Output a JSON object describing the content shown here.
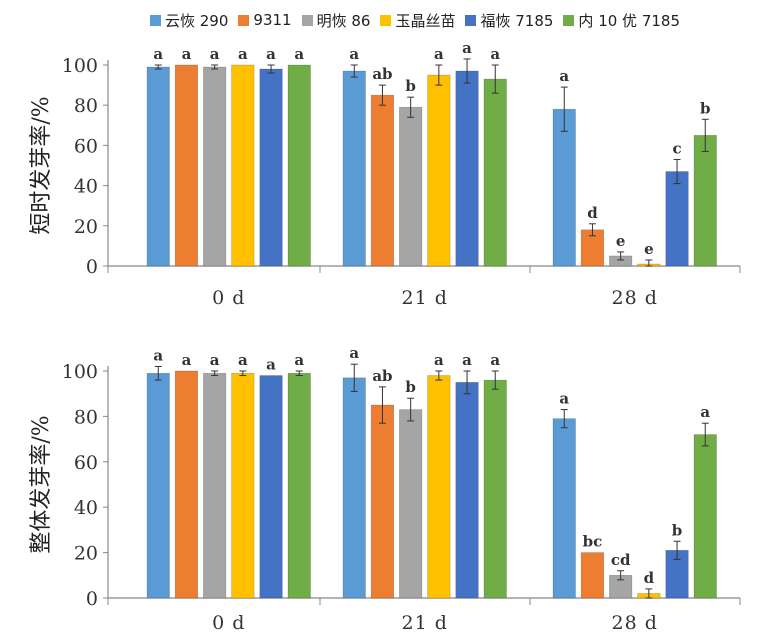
{
  "legend": [
    {
      "name": "云恢 290",
      "color": "#5b9bd5"
    },
    {
      "name": "9311",
      "color": "#ed7d31"
    },
    {
      "name": "明恢 86",
      "color": "#a5a5a5"
    },
    {
      "name": "玉晶丝苗",
      "color": "#ffc000"
    },
    {
      "name": "福恢 7185",
      "color": "#4472c4"
    },
    {
      "name": "内 10 优 7185",
      "color": "#70ad47"
    }
  ],
  "chart_data": [
    {
      "type": "bar",
      "categories": [
        "0 d",
        "21 d",
        "28 d"
      ],
      "ylabel": "短时发芽率/%",
      "ylim": [
        0,
        100
      ],
      "yticks": [
        0,
        20,
        40,
        60,
        80,
        100
      ],
      "series": [
        {
          "name": "云恢 290",
          "values": [
            99,
            97,
            78
          ],
          "errors": [
            1,
            3,
            11
          ],
          "labels": [
            "a",
            "a",
            "a"
          ]
        },
        {
          "name": "9311",
          "values": [
            100,
            85,
            18
          ],
          "errors": [
            0,
            5,
            3
          ],
          "labels": [
            "a",
            "ab",
            "d"
          ]
        },
        {
          "name": "明恢 86",
          "values": [
            99,
            79,
            5
          ],
          "errors": [
            1,
            5,
            2
          ],
          "labels": [
            "a",
            "b",
            "e"
          ]
        },
        {
          "name": "玉晶丝苗",
          "values": [
            100,
            95,
            1
          ],
          "errors": [
            0,
            5,
            2
          ],
          "labels": [
            "a",
            "a",
            "e"
          ]
        },
        {
          "name": "福恢 7185",
          "values": [
            98,
            97,
            47
          ],
          "errors": [
            2,
            6,
            6
          ],
          "labels": [
            "a",
            "a",
            "c"
          ]
        },
        {
          "name": "内 10 优 7185",
          "values": [
            100,
            93,
            65
          ],
          "errors": [
            0,
            7,
            8
          ],
          "labels": [
            "a",
            "a",
            "b"
          ]
        }
      ]
    },
    {
      "type": "bar",
      "categories": [
        "0 d",
        "21 d",
        "28 d"
      ],
      "ylabel": "整体发芽率/%",
      "ylim": [
        0,
        100
      ],
      "yticks": [
        0,
        20,
        40,
        60,
        80,
        100
      ],
      "series": [
        {
          "name": "云恢 290",
          "values": [
            99,
            97,
            79
          ],
          "errors": [
            3,
            6,
            4
          ],
          "labels": [
            "a",
            "a",
            "a"
          ]
        },
        {
          "name": "9311",
          "values": [
            100,
            85,
            20
          ],
          "errors": [
            0,
            8,
            0
          ],
          "labels": [
            "a",
            "ab",
            "bc"
          ]
        },
        {
          "name": "明恢 86",
          "values": [
            99,
            83,
            10
          ],
          "errors": [
            1,
            5,
            2
          ],
          "labels": [
            "a",
            "b",
            "cd"
          ]
        },
        {
          "name": "玉晶丝苗",
          "values": [
            99,
            98,
            2
          ],
          "errors": [
            1,
            2,
            2
          ],
          "labels": [
            "a",
            "a",
            "d"
          ]
        },
        {
          "name": "福恢 7185",
          "values": [
            98,
            95,
            21
          ],
          "errors": [
            0,
            5,
            4
          ],
          "labels": [
            "a",
            "a",
            "b"
          ]
        },
        {
          "name": "内 10 优 7185",
          "values": [
            99,
            96,
            72
          ],
          "errors": [
            1,
            4,
            5
          ],
          "labels": [
            "a",
            "a",
            "a"
          ]
        }
      ]
    }
  ]
}
